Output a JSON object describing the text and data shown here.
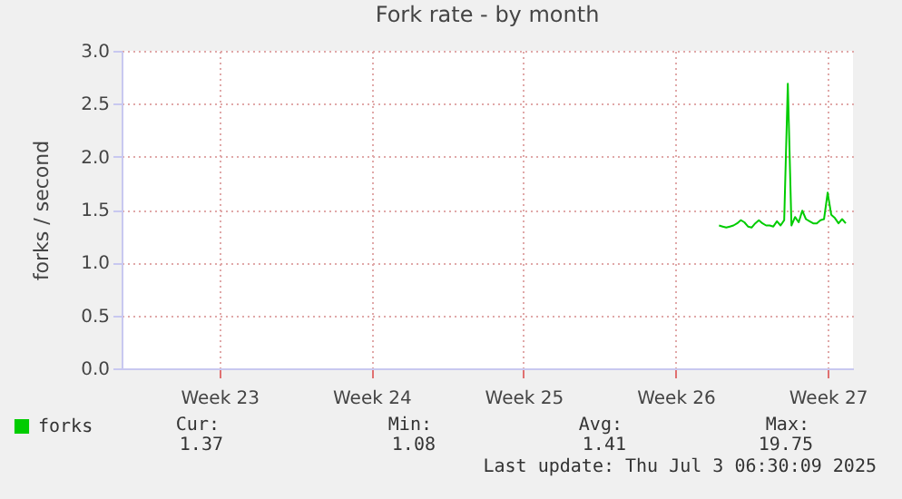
{
  "chart_data": {
    "type": "line",
    "title": "Fork rate - by month",
    "ylabel": "forks / second",
    "categories": [
      null,
      null,
      null,
      null,
      null,
      null,
      null,
      null,
      null,
      null,
      null,
      null,
      null,
      null,
      null,
      null,
      null,
      null,
      null,
      null,
      null,
      null,
      null,
      null,
      null,
      null,
      null,
      "Week 23",
      null,
      null,
      null,
      null,
      null,
      null,
      null,
      null,
      null,
      null,
      null,
      null,
      null,
      null,
      null,
      null,
      null,
      null,
      null,
      null,
      null,
      null,
      null,
      null,
      null,
      null,
      null,
      null,
      null,
      null,
      null,
      null,
      null,
      null,
      null,
      null,
      null,
      null,
      null,
      null,
      null,
      "Week 24",
      null,
      null,
      null,
      null,
      null,
      null,
      null,
      null,
      null,
      null,
      null,
      null,
      null,
      null,
      null,
      null,
      null,
      null,
      null,
      null,
      null,
      null,
      null,
      null,
      null,
      null,
      null,
      null,
      null,
      null,
      null,
      null,
      null,
      null,
      null,
      null,
      null,
      null,
      null,
      null,
      null,
      "Week 25",
      null,
      null,
      null,
      null,
      null,
      null,
      null,
      null,
      null,
      null,
      null,
      null,
      null,
      null,
      null,
      null,
      null,
      null,
      null,
      null,
      null,
      null,
      null,
      null,
      null,
      null,
      null,
      null,
      null,
      null,
      null,
      null,
      null,
      null,
      null,
      null,
      null,
      null,
      null,
      null,
      null,
      "Week 26",
      null,
      null,
      null,
      null,
      null,
      null,
      null,
      null,
      null,
      null,
      null,
      null,
      null,
      null,
      null,
      null,
      null,
      null,
      null,
      null,
      null,
      null,
      null,
      null,
      null,
      null,
      null,
      null,
      null,
      null,
      null,
      null,
      null,
      null,
      null,
      null,
      null,
      null,
      null,
      null,
      null,
      "Week 27",
      null,
      null,
      null,
      null,
      null,
      null,
      null
    ],
    "series": [
      {
        "name": "forks",
        "color": "#00cc00",
        "values": [
          null,
          null,
          null,
          null,
          null,
          null,
          null,
          null,
          null,
          null,
          null,
          null,
          null,
          null,
          null,
          null,
          null,
          null,
          null,
          null,
          null,
          null,
          null,
          null,
          null,
          null,
          null,
          null,
          null,
          null,
          null,
          null,
          null,
          null,
          null,
          null,
          null,
          null,
          null,
          null,
          null,
          null,
          null,
          null,
          null,
          null,
          null,
          null,
          null,
          null,
          null,
          null,
          null,
          null,
          null,
          null,
          null,
          null,
          null,
          null,
          null,
          null,
          null,
          null,
          null,
          null,
          null,
          null,
          null,
          null,
          null,
          null,
          null,
          null,
          null,
          null,
          null,
          null,
          null,
          null,
          null,
          null,
          null,
          null,
          null,
          null,
          null,
          null,
          null,
          null,
          null,
          null,
          null,
          null,
          null,
          null,
          null,
          null,
          null,
          null,
          null,
          null,
          null,
          null,
          null,
          null,
          null,
          null,
          null,
          null,
          null,
          null,
          null,
          null,
          null,
          null,
          null,
          null,
          null,
          null,
          null,
          null,
          null,
          null,
          null,
          null,
          null,
          null,
          null,
          null,
          null,
          null,
          null,
          null,
          null,
          null,
          null,
          null,
          null,
          null,
          null,
          null,
          null,
          null,
          null,
          null,
          null,
          null,
          null,
          null,
          null,
          null,
          null,
          null,
          null,
          null,
          null,
          null,
          null,
          null,
          null,
          null,
          null,
          null,
          null,
          1.35,
          1.34,
          1.33,
          1.34,
          1.35,
          1.37,
          1.4,
          1.38,
          1.34,
          1.33,
          1.37,
          1.4,
          1.37,
          1.35,
          1.35,
          1.34,
          1.39,
          1.35,
          1.4,
          2.69,
          1.35,
          1.43,
          1.38,
          1.49,
          1.41,
          1.39,
          1.37,
          1.37,
          1.4,
          1.41,
          1.66,
          1.45,
          1.42,
          1.37,
          1.41,
          1.37,
          null,
          null
        ]
      }
    ],
    "ylim": [
      0,
      3
    ],
    "yticks": [
      {
        "value": 0,
        "label": "0.0"
      },
      {
        "value": 0.5,
        "label": "0.5"
      },
      {
        "value": 1,
        "label": "1.0"
      },
      {
        "value": 1.5,
        "label": "1.5"
      },
      {
        "value": 2,
        "label": "2.0"
      },
      {
        "value": 2.5,
        "label": "2.5"
      },
      {
        "value": 3,
        "label": "3.0"
      }
    ],
    "grid": true,
    "legend": "bottom left",
    "marker": "none",
    "line_style": "solid",
    "annotations": [
      "Cur:",
      "Min:",
      "Avg:",
      "Max:",
      "1.37",
      "1.08",
      "1.41",
      "19.75",
      "Last update: Thu Jul  3 06:30:09 2025"
    ]
  }
}
